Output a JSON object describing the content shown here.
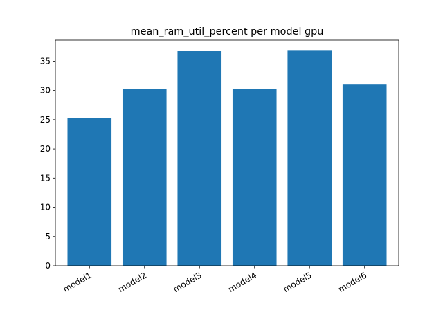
{
  "chart_data": {
    "type": "bar",
    "title": "mean_ram_util_percent per model gpu",
    "xlabel": "",
    "ylabel": "",
    "categories": [
      "model1",
      "model2",
      "model3",
      "model4",
      "model5",
      "model6"
    ],
    "values": [
      25.3,
      30.2,
      36.8,
      30.3,
      36.9,
      31.0
    ],
    "ylim": [
      0,
      38.6
    ],
    "yticks": [
      0,
      5,
      10,
      15,
      20,
      25,
      30,
      35
    ],
    "grid": false,
    "legend": "none",
    "bar_color": "#1f77b4",
    "tick_label_rotation": "30"
  }
}
